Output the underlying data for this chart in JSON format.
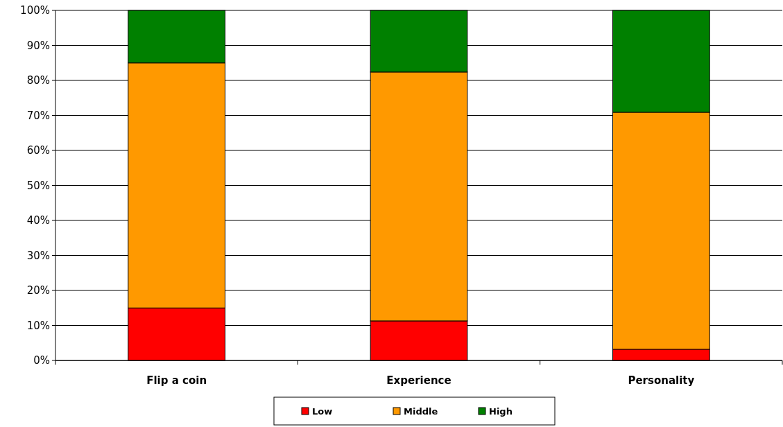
{
  "chart_data": {
    "type": "bar",
    "stacked": true,
    "categories": [
      "Flip a coin",
      "Experience",
      "Personality"
    ],
    "series": [
      {
        "name": "Low",
        "color": "#ff0000",
        "values": [
          15,
          11.3,
          3.2
        ]
      },
      {
        "name": "Middle",
        "color": "#ff9900",
        "values": [
          70,
          71.1,
          67.7
        ]
      },
      {
        "name": "High",
        "color": "#008000",
        "values": [
          15,
          17.6,
          29.1
        ]
      }
    ],
    "ylim": [
      0,
      100
    ],
    "yticks": [
      {
        "value": 0,
        "label": "0%"
      },
      {
        "value": 10,
        "label": "10%"
      },
      {
        "value": 20,
        "label": "20%"
      },
      {
        "value": 30,
        "label": "30%"
      },
      {
        "value": 40,
        "label": "40%"
      },
      {
        "value": 50,
        "label": "50%"
      },
      {
        "value": 60,
        "label": "60%"
      },
      {
        "value": 70,
        "label": "70%"
      },
      {
        "value": 80,
        "label": "80%"
      },
      {
        "value": 90,
        "label": "90%"
      },
      {
        "value": 100,
        "label": "100%"
      }
    ],
    "grid": "y",
    "legend": "bottom"
  }
}
